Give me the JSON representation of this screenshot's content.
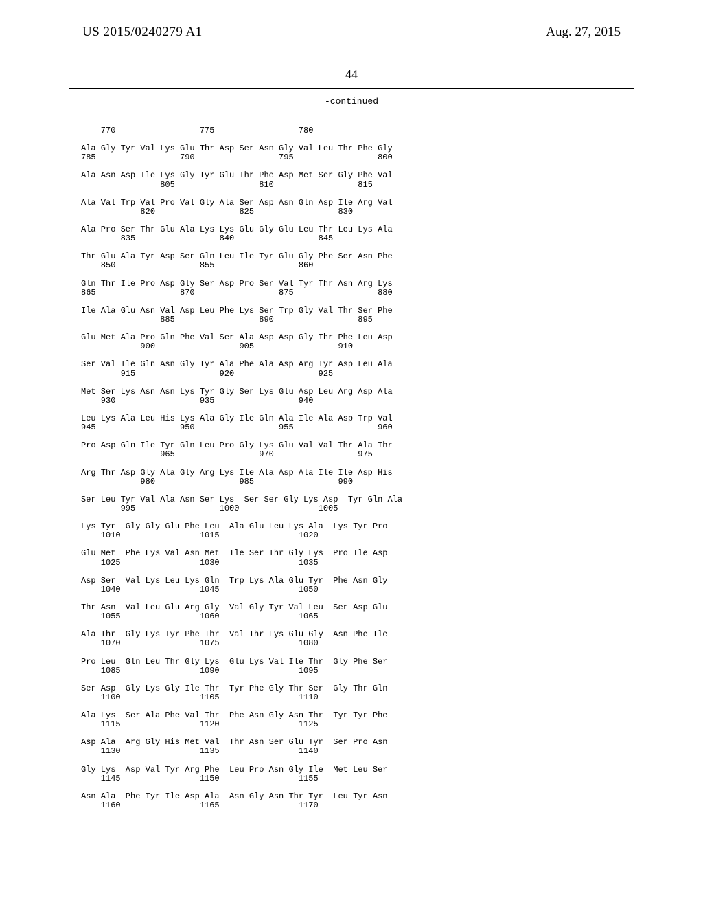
{
  "header": {
    "left": "US 2015/0240279 A1",
    "right": "Aug. 27, 2015"
  },
  "page_number": "44",
  "continued_label": "-continued",
  "sequence_text": "    770                 775                 780\n\nAla Gly Tyr Val Lys Glu Thr Asp Ser Asn Gly Val Leu Thr Phe Gly\n785                 790                 795                 800\n\nAla Asn Asp Ile Lys Gly Tyr Glu Thr Phe Asp Met Ser Gly Phe Val\n                805                 810                 815\n\nAla Val Trp Val Pro Val Gly Ala Ser Asp Asn Gln Asp Ile Arg Val\n            820                 825                 830\n\nAla Pro Ser Thr Glu Ala Lys Lys Glu Gly Glu Leu Thr Leu Lys Ala\n        835                 840                 845\n\nThr Glu Ala Tyr Asp Ser Gln Leu Ile Tyr Glu Gly Phe Ser Asn Phe\n    850                 855                 860\n\nGln Thr Ile Pro Asp Gly Ser Asp Pro Ser Val Tyr Thr Asn Arg Lys\n865                 870                 875                 880\n\nIle Ala Glu Asn Val Asp Leu Phe Lys Ser Trp Gly Val Thr Ser Phe\n                885                 890                 895\n\nGlu Met Ala Pro Gln Phe Val Ser Ala Asp Asp Gly Thr Phe Leu Asp\n            900                 905                 910\n\nSer Val Ile Gln Asn Gly Tyr Ala Phe Ala Asp Arg Tyr Asp Leu Ala\n        915                 920                 925\n\nMet Ser Lys Asn Asn Lys Tyr Gly Ser Lys Glu Asp Leu Arg Asp Ala\n    930                 935                 940\n\nLeu Lys Ala Leu His Lys Ala Gly Ile Gln Ala Ile Ala Asp Trp Val\n945                 950                 955                 960\n\nPro Asp Gln Ile Tyr Gln Leu Pro Gly Lys Glu Val Val Thr Ala Thr\n                965                 970                 975\n\nArg Thr Asp Gly Ala Gly Arg Lys Ile Ala Asp Ala Ile Ile Asp His\n            980                 985                 990\n\nSer Leu Tyr Val Ala Asn Ser Lys  Ser Ser Gly Lys Asp  Tyr Gln Ala\n        995                 1000                1005\n\nLys Tyr  Gly Gly Glu Phe Leu  Ala Glu Leu Lys Ala  Lys Tyr Pro\n    1010                1015                1020\n\nGlu Met  Phe Lys Val Asn Met  Ile Ser Thr Gly Lys  Pro Ile Asp\n    1025                1030                1035\n\nAsp Ser  Val Lys Leu Lys Gln  Trp Lys Ala Glu Tyr  Phe Asn Gly\n    1040                1045                1050\n\nThr Asn  Val Leu Glu Arg Gly  Val Gly Tyr Val Leu  Ser Asp Glu\n    1055                1060                1065\n\nAla Thr  Gly Lys Tyr Phe Thr  Val Thr Lys Glu Gly  Asn Phe Ile\n    1070                1075                1080\n\nPro Leu  Gln Leu Thr Gly Lys  Glu Lys Val Ile Thr  Gly Phe Ser\n    1085                1090                1095\n\nSer Asp  Gly Lys Gly Ile Thr  Tyr Phe Gly Thr Ser  Gly Thr Gln\n    1100                1105                1110\n\nAla Lys  Ser Ala Phe Val Thr  Phe Asn Gly Asn Thr  Tyr Tyr Phe\n    1115                1120                1125\n\nAsp Ala  Arg Gly His Met Val  Thr Asn Ser Glu Tyr  Ser Pro Asn\n    1130                1135                1140\n\nGly Lys  Asp Val Tyr Arg Phe  Leu Pro Asn Gly Ile  Met Leu Ser\n    1145                1150                1155\n\nAsn Ala  Phe Tyr Ile Asp Ala  Asn Gly Asn Thr Tyr  Leu Tyr Asn\n    1160                1165                1170"
}
